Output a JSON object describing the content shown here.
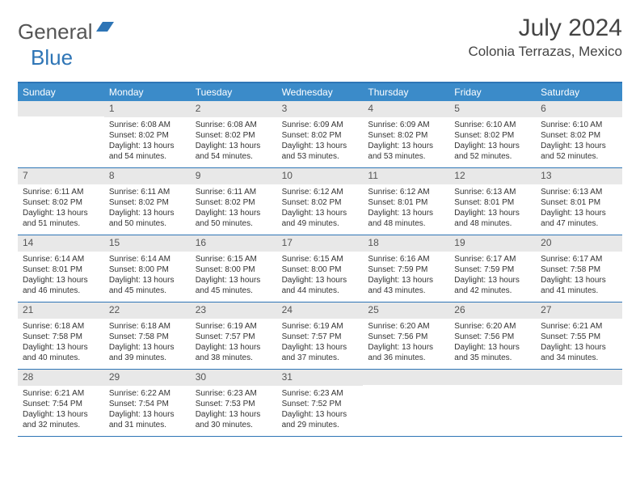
{
  "logo": {
    "part1": "General",
    "part2": "Blue"
  },
  "title": "July 2024",
  "location": "Colonia Terrazas, Mexico",
  "colors": {
    "header_bg": "#3b8bc9",
    "border": "#2e75b6",
    "daynum_bg": "#e8e8e8",
    "logo_blue": "#2e75b6"
  },
  "weekdays": [
    "Sunday",
    "Monday",
    "Tuesday",
    "Wednesday",
    "Thursday",
    "Friday",
    "Saturday"
  ],
  "weeks": [
    [
      null,
      {
        "n": "1",
        "sr": "6:08 AM",
        "ss": "8:02 PM",
        "dl": "13 hours and 54 minutes."
      },
      {
        "n": "2",
        "sr": "6:08 AM",
        "ss": "8:02 PM",
        "dl": "13 hours and 54 minutes."
      },
      {
        "n": "3",
        "sr": "6:09 AM",
        "ss": "8:02 PM",
        "dl": "13 hours and 53 minutes."
      },
      {
        "n": "4",
        "sr": "6:09 AM",
        "ss": "8:02 PM",
        "dl": "13 hours and 53 minutes."
      },
      {
        "n": "5",
        "sr": "6:10 AM",
        "ss": "8:02 PM",
        "dl": "13 hours and 52 minutes."
      },
      {
        "n": "6",
        "sr": "6:10 AM",
        "ss": "8:02 PM",
        "dl": "13 hours and 52 minutes."
      }
    ],
    [
      {
        "n": "7",
        "sr": "6:11 AM",
        "ss": "8:02 PM",
        "dl": "13 hours and 51 minutes."
      },
      {
        "n": "8",
        "sr": "6:11 AM",
        "ss": "8:02 PM",
        "dl": "13 hours and 50 minutes."
      },
      {
        "n": "9",
        "sr": "6:11 AM",
        "ss": "8:02 PM",
        "dl": "13 hours and 50 minutes."
      },
      {
        "n": "10",
        "sr": "6:12 AM",
        "ss": "8:02 PM",
        "dl": "13 hours and 49 minutes."
      },
      {
        "n": "11",
        "sr": "6:12 AM",
        "ss": "8:01 PM",
        "dl": "13 hours and 48 minutes."
      },
      {
        "n": "12",
        "sr": "6:13 AM",
        "ss": "8:01 PM",
        "dl": "13 hours and 48 minutes."
      },
      {
        "n": "13",
        "sr": "6:13 AM",
        "ss": "8:01 PM",
        "dl": "13 hours and 47 minutes."
      }
    ],
    [
      {
        "n": "14",
        "sr": "6:14 AM",
        "ss": "8:01 PM",
        "dl": "13 hours and 46 minutes."
      },
      {
        "n": "15",
        "sr": "6:14 AM",
        "ss": "8:00 PM",
        "dl": "13 hours and 45 minutes."
      },
      {
        "n": "16",
        "sr": "6:15 AM",
        "ss": "8:00 PM",
        "dl": "13 hours and 45 minutes."
      },
      {
        "n": "17",
        "sr": "6:15 AM",
        "ss": "8:00 PM",
        "dl": "13 hours and 44 minutes."
      },
      {
        "n": "18",
        "sr": "6:16 AM",
        "ss": "7:59 PM",
        "dl": "13 hours and 43 minutes."
      },
      {
        "n": "19",
        "sr": "6:17 AM",
        "ss": "7:59 PM",
        "dl": "13 hours and 42 minutes."
      },
      {
        "n": "20",
        "sr": "6:17 AM",
        "ss": "7:58 PM",
        "dl": "13 hours and 41 minutes."
      }
    ],
    [
      {
        "n": "21",
        "sr": "6:18 AM",
        "ss": "7:58 PM",
        "dl": "13 hours and 40 minutes."
      },
      {
        "n": "22",
        "sr": "6:18 AM",
        "ss": "7:58 PM",
        "dl": "13 hours and 39 minutes."
      },
      {
        "n": "23",
        "sr": "6:19 AM",
        "ss": "7:57 PM",
        "dl": "13 hours and 38 minutes."
      },
      {
        "n": "24",
        "sr": "6:19 AM",
        "ss": "7:57 PM",
        "dl": "13 hours and 37 minutes."
      },
      {
        "n": "25",
        "sr": "6:20 AM",
        "ss": "7:56 PM",
        "dl": "13 hours and 36 minutes."
      },
      {
        "n": "26",
        "sr": "6:20 AM",
        "ss": "7:56 PM",
        "dl": "13 hours and 35 minutes."
      },
      {
        "n": "27",
        "sr": "6:21 AM",
        "ss": "7:55 PM",
        "dl": "13 hours and 34 minutes."
      }
    ],
    [
      {
        "n": "28",
        "sr": "6:21 AM",
        "ss": "7:54 PM",
        "dl": "13 hours and 32 minutes."
      },
      {
        "n": "29",
        "sr": "6:22 AM",
        "ss": "7:54 PM",
        "dl": "13 hours and 31 minutes."
      },
      {
        "n": "30",
        "sr": "6:23 AM",
        "ss": "7:53 PM",
        "dl": "13 hours and 30 minutes."
      },
      {
        "n": "31",
        "sr": "6:23 AM",
        "ss": "7:52 PM",
        "dl": "13 hours and 29 minutes."
      },
      null,
      null,
      null
    ]
  ],
  "labels": {
    "sunrise": "Sunrise:",
    "sunset": "Sunset:",
    "daylight": "Daylight:"
  }
}
